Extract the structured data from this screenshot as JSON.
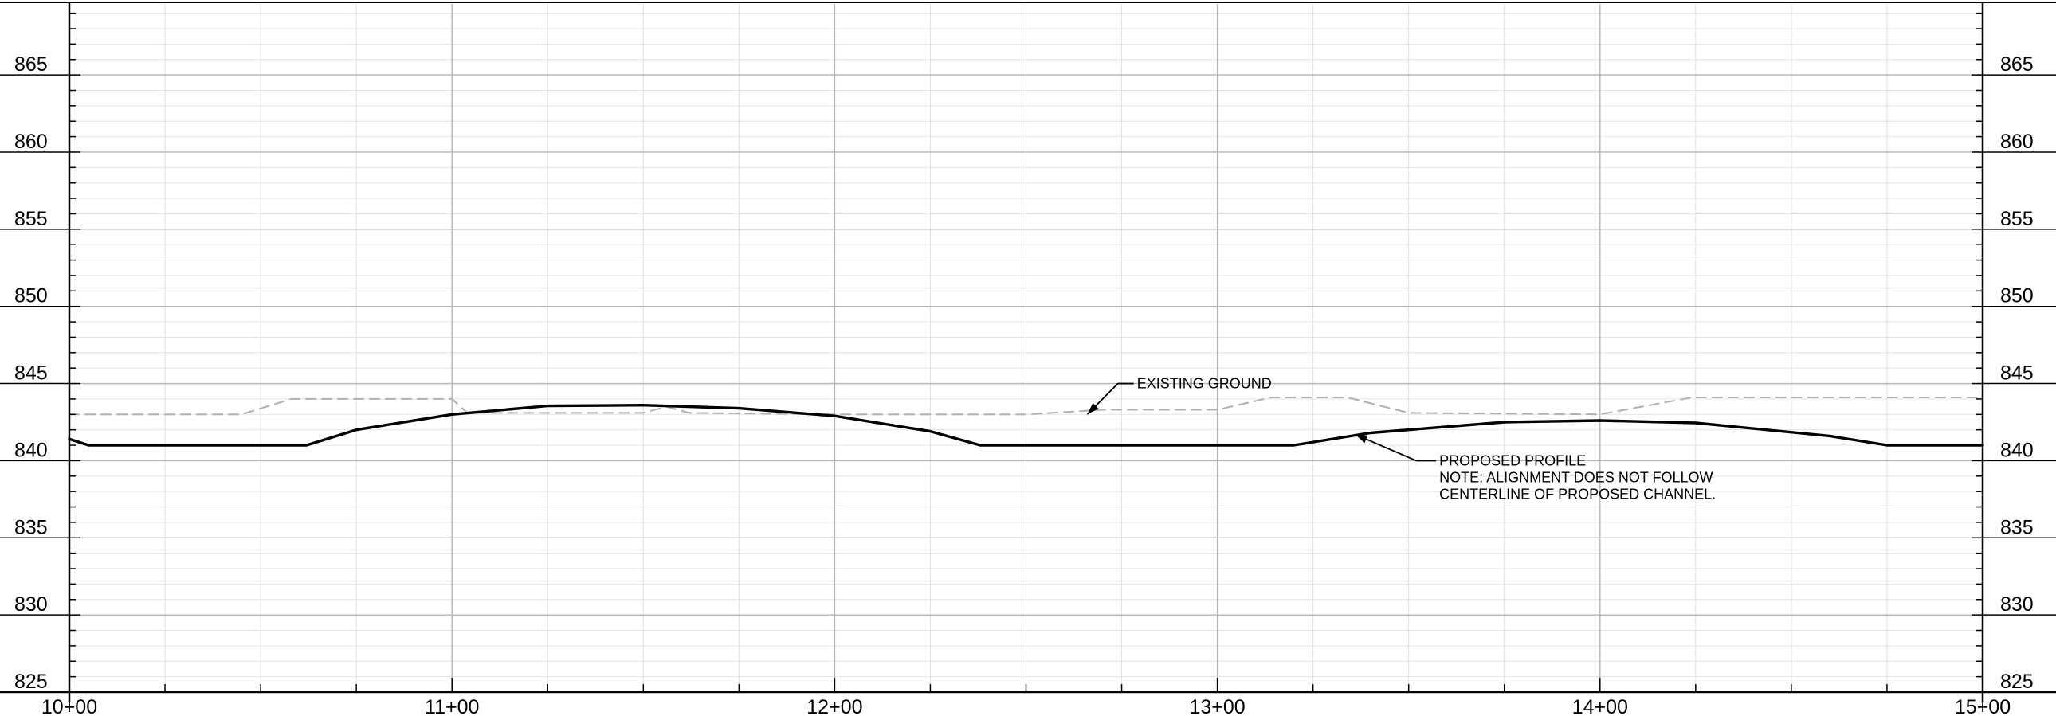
{
  "chart_data": {
    "type": "line",
    "title": "",
    "xlabel": "",
    "ylabel": "",
    "xlim": [
      1000,
      1500
    ],
    "ylim": [
      825,
      870
    ],
    "x_ticks": [
      {
        "value": 1000,
        "label": "10+00"
      },
      {
        "value": 1100,
        "label": "11+00"
      },
      {
        "value": 1200,
        "label": "12+00"
      },
      {
        "value": 1300,
        "label": "13+00"
      },
      {
        "value": 1400,
        "label": "14+00"
      },
      {
        "value": 1500,
        "label": "15+00"
      }
    ],
    "y_ticks": [
      {
        "value": 825,
        "label": "825"
      },
      {
        "value": 830,
        "label": "830"
      },
      {
        "value": 835,
        "label": "835"
      },
      {
        "value": 840,
        "label": "840"
      },
      {
        "value": 845,
        "label": "845"
      },
      {
        "value": 850,
        "label": "850"
      },
      {
        "value": 855,
        "label": "855"
      },
      {
        "value": 860,
        "label": "860"
      },
      {
        "value": 865,
        "label": "865"
      }
    ],
    "grid": true,
    "series": [
      {
        "name": "EXISTING GROUND",
        "style": "dashed",
        "color": "#b0b0b0",
        "x": [
          1000,
          1045,
          1058,
          1100,
          1104,
          1150,
          1156,
          1162,
          1200,
          1250,
          1270,
          1300,
          1314,
          1334,
          1350,
          1400,
          1424,
          1500
        ],
        "y": [
          843.0,
          843.0,
          844.0,
          844.0,
          843.1,
          843.1,
          843.5,
          843.1,
          843.0,
          843.0,
          843.3,
          843.3,
          844.1,
          844.1,
          843.1,
          843.0,
          844.1,
          844.1
        ]
      },
      {
        "name": "PROPOSED PROFILE",
        "style": "solid",
        "color": "#000000",
        "x": [
          1000,
          1005,
          1062,
          1075,
          1100,
          1125,
          1150,
          1175,
          1200,
          1225,
          1238,
          1320,
          1340,
          1375,
          1400,
          1425,
          1460,
          1475,
          1500
        ],
        "y": [
          841.4,
          841.0,
          841.0,
          842.0,
          843.0,
          843.55,
          843.6,
          843.4,
          842.9,
          841.9,
          841.0,
          841.0,
          841.8,
          842.5,
          842.6,
          842.45,
          841.6,
          841.0,
          841.0
        ]
      }
    ],
    "annotations": [
      {
        "id": "existing-ground",
        "lines": [
          "EXISTING GROUND"
        ],
        "target": [
          1266,
          843.0
        ],
        "elbow": [
          1274,
          845.0
        ],
        "label_at": [
          1279,
          845.0
        ]
      },
      {
        "id": "proposed-profile",
        "lines": [
          "PROPOSED PROFILE",
          "NOTE: ALIGNMENT DOES NOT FOLLOW",
          "CENTERLINE OF PROPOSED CHANNEL."
        ],
        "target": [
          1336,
          841.7
        ],
        "elbow": [
          1352,
          840.0
        ],
        "label_at": [
          1358,
          840.0
        ]
      }
    ]
  }
}
